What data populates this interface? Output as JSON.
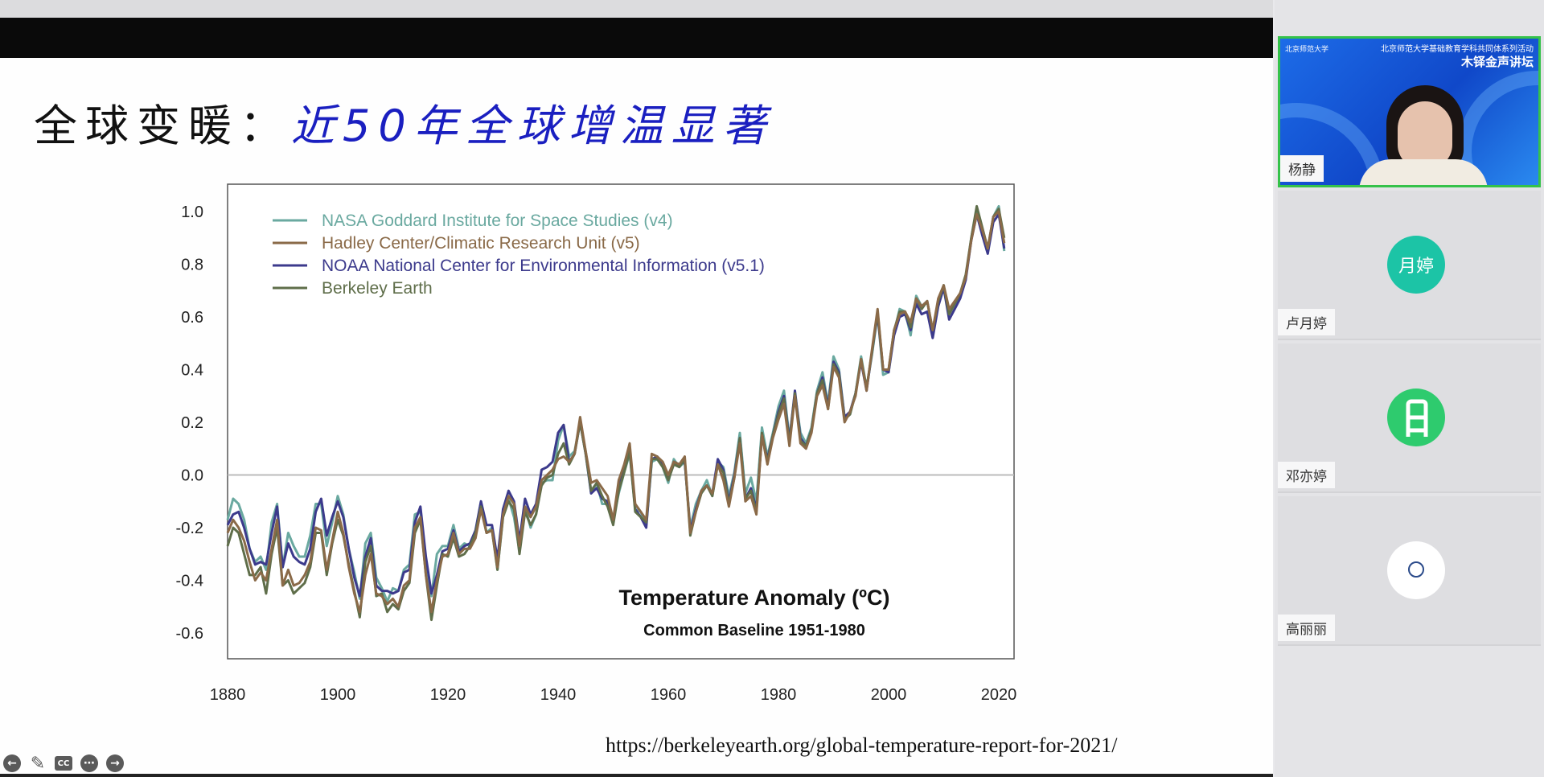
{
  "slide": {
    "title_black": "全球变暖：",
    "title_blue": "近50年全球增温显著",
    "source_url": "https://berkeleyearth.org/global-temperature-report-for-2021/"
  },
  "controls": {
    "prev": "←",
    "pen": "✎",
    "cc": "CC",
    "more": "⋯",
    "next": "→"
  },
  "participants": [
    {
      "name": "杨静",
      "video_header_line1": "北京师范大学基础教育学科共同体系列活动",
      "video_header_line2": "木铎金声讲坛",
      "logo_text": "北京师范大学"
    },
    {
      "name": "卢月婷",
      "avatar_text": "月婷",
      "avatar_color": "#1cc4a6"
    },
    {
      "name": "邓亦婷",
      "avatar_text": "",
      "avatar_color": "#2ecb6e"
    },
    {
      "name": "高丽丽",
      "avatar_text": "北京师范大学",
      "avatar_color": "#ffffff"
    }
  ],
  "chart_data": {
    "type": "line",
    "title": "Temperature Anomaly (ºC)",
    "subtitle": "Common Baseline 1951-1980",
    "xlabel": "",
    "ylabel": "",
    "xlim": [
      1880,
      2022
    ],
    "ylim": [
      -0.7,
      1.1
    ],
    "x_start": 1880,
    "xticks": [
      1880,
      1900,
      1920,
      1940,
      1960,
      1980,
      2000,
      2020
    ],
    "yticks": [
      "1.0",
      "0.8",
      "0.6",
      "0.4",
      "0.2",
      "0.0",
      "-0.2",
      "-0.4",
      "-0.6"
    ],
    "ytick_values": [
      1.0,
      0.8,
      0.6,
      0.4,
      0.2,
      0.0,
      -0.2,
      -0.4,
      -0.6
    ],
    "zero_line": true,
    "legend_position": "top-left",
    "series": [
      {
        "name": "NASA Goddard Institute for Space Studies (v4)",
        "color": "#6aa9a0",
        "values": [
          -0.17,
          -0.09,
          -0.11,
          -0.17,
          -0.28,
          -0.33,
          -0.31,
          -0.36,
          -0.18,
          -0.11,
          -0.35,
          -0.22,
          -0.27,
          -0.31,
          -0.31,
          -0.23,
          -0.11,
          -0.11,
          -0.27,
          -0.18,
          -0.08,
          -0.15,
          -0.28,
          -0.37,
          -0.47,
          -0.26,
          -0.22,
          -0.39,
          -0.43,
          -0.48,
          -0.43,
          -0.44,
          -0.36,
          -0.34,
          -0.15,
          -0.14,
          -0.36,
          -0.46,
          -0.3,
          -0.27,
          -0.27,
          -0.19,
          -0.28,
          -0.26,
          -0.27,
          -0.22,
          -0.1,
          -0.22,
          -0.2,
          -0.36,
          -0.16,
          -0.09,
          -0.16,
          -0.29,
          -0.12,
          -0.2,
          -0.15,
          -0.03,
          -0.02,
          -0.02,
          0.13,
          0.19,
          0.07,
          0.09,
          0.2,
          0.09,
          -0.07,
          -0.03,
          -0.11,
          -0.11,
          -0.17,
          -0.07,
          0.01,
          0.08,
          -0.13,
          -0.14,
          -0.19,
          0.05,
          0.06,
          0.03,
          -0.03,
          0.06,
          0.03,
          0.05,
          -0.2,
          -0.11,
          -0.06,
          -0.02,
          -0.08,
          0.05,
          0.03,
          -0.08,
          0.01,
          0.16,
          -0.07,
          -0.01,
          -0.1,
          0.18,
          0.07,
          0.16,
          0.26,
          0.32,
          0.14,
          0.31,
          0.16,
          0.12,
          0.18,
          0.32,
          0.39,
          0.27,
          0.45,
          0.4,
          0.22,
          0.23,
          0.31,
          0.45,
          0.33,
          0.46,
          0.61,
          0.38,
          0.39,
          0.54,
          0.63,
          0.62,
          0.53,
          0.68,
          0.64,
          0.66,
          0.54,
          0.65,
          0.72,
          0.61,
          0.65,
          0.68,
          0.75,
          0.9,
          1.01,
          0.92,
          0.85,
          0.98,
          1.02,
          0.85
        ]
      },
      {
        "name": "Hadley Center/Climatic Research Unit (v5)",
        "color": "#8a6a48",
        "values": [
          -0.22,
          -0.17,
          -0.2,
          -0.25,
          -0.33,
          -0.4,
          -0.37,
          -0.4,
          -0.28,
          -0.17,
          -0.42,
          -0.36,
          -0.42,
          -0.41,
          -0.38,
          -0.33,
          -0.2,
          -0.21,
          -0.36,
          -0.25,
          -0.14,
          -0.22,
          -0.35,
          -0.45,
          -0.52,
          -0.38,
          -0.3,
          -0.45,
          -0.46,
          -0.49,
          -0.47,
          -0.5,
          -0.42,
          -0.4,
          -0.2,
          -0.16,
          -0.38,
          -0.52,
          -0.4,
          -0.31,
          -0.3,
          -0.22,
          -0.3,
          -0.28,
          -0.28,
          -0.24,
          -0.13,
          -0.22,
          -0.21,
          -0.35,
          -0.15,
          -0.08,
          -0.11,
          -0.27,
          -0.12,
          -0.16,
          -0.12,
          -0.02,
          0.0,
          0.02,
          0.06,
          0.07,
          0.05,
          0.08,
          0.22,
          0.09,
          -0.03,
          -0.02,
          -0.05,
          -0.08,
          -0.17,
          -0.02,
          0.04,
          0.12,
          -0.11,
          -0.14,
          -0.17,
          0.08,
          0.07,
          0.05,
          0.0,
          0.05,
          0.04,
          0.07,
          -0.22,
          -0.14,
          -0.06,
          -0.04,
          -0.07,
          0.04,
          -0.02,
          -0.12,
          -0.01,
          0.12,
          -0.1,
          -0.08,
          -0.15,
          0.15,
          0.04,
          0.14,
          0.21,
          0.27,
          0.11,
          0.3,
          0.12,
          0.1,
          0.16,
          0.3,
          0.34,
          0.25,
          0.41,
          0.37,
          0.2,
          0.24,
          0.3,
          0.44,
          0.32,
          0.48,
          0.63,
          0.4,
          0.4,
          0.55,
          0.61,
          0.62,
          0.58,
          0.67,
          0.64,
          0.66,
          0.55,
          0.67,
          0.72,
          0.63,
          0.66,
          0.69,
          0.75,
          0.89,
          0.99,
          0.93,
          0.86,
          0.98,
          1.0,
          0.88
        ]
      },
      {
        "name": "NOAA National Center for Environmental Information (v5.1)",
        "color": "#3c3a8c",
        "values": [
          -0.19,
          -0.15,
          -0.14,
          -0.2,
          -0.28,
          -0.34,
          -0.33,
          -0.34,
          -0.22,
          -0.12,
          -0.35,
          -0.26,
          -0.31,
          -0.33,
          -0.34,
          -0.28,
          -0.14,
          -0.09,
          -0.23,
          -0.16,
          -0.1,
          -0.16,
          -0.28,
          -0.39,
          -0.46,
          -0.31,
          -0.24,
          -0.42,
          -0.44,
          -0.44,
          -0.45,
          -0.44,
          -0.37,
          -0.36,
          -0.18,
          -0.12,
          -0.31,
          -0.45,
          -0.38,
          -0.29,
          -0.28,
          -0.21,
          -0.29,
          -0.27,
          -0.26,
          -0.21,
          -0.1,
          -0.19,
          -0.19,
          -0.32,
          -0.13,
          -0.06,
          -0.1,
          -0.25,
          -0.09,
          -0.15,
          -0.11,
          0.02,
          0.03,
          0.05,
          0.16,
          0.19,
          0.05,
          0.08,
          0.2,
          0.08,
          -0.07,
          -0.05,
          -0.09,
          -0.1,
          -0.18,
          -0.04,
          0.03,
          0.1,
          -0.13,
          -0.16,
          -0.2,
          0.06,
          0.07,
          0.04,
          -0.01,
          0.05,
          0.04,
          0.05,
          -0.21,
          -0.13,
          -0.06,
          -0.04,
          -0.07,
          0.06,
          0.02,
          -0.1,
          0.0,
          0.14,
          -0.09,
          -0.05,
          -0.13,
          0.15,
          0.06,
          0.15,
          0.24,
          0.3,
          0.13,
          0.32,
          0.14,
          0.11,
          0.17,
          0.31,
          0.37,
          0.26,
          0.43,
          0.39,
          0.22,
          0.24,
          0.31,
          0.43,
          0.32,
          0.47,
          0.61,
          0.4,
          0.39,
          0.53,
          0.6,
          0.61,
          0.55,
          0.65,
          0.61,
          0.62,
          0.52,
          0.64,
          0.71,
          0.59,
          0.63,
          0.67,
          0.74,
          0.89,
          0.99,
          0.91,
          0.84,
          0.96,
          0.99,
          0.86
        ]
      },
      {
        "name": "Berkeley Earth",
        "color": "#5f6e4a",
        "values": [
          -0.27,
          -0.2,
          -0.22,
          -0.3,
          -0.38,
          -0.38,
          -0.35,
          -0.45,
          -0.3,
          -0.2,
          -0.42,
          -0.4,
          -0.45,
          -0.43,
          -0.41,
          -0.35,
          -0.22,
          -0.22,
          -0.38,
          -0.26,
          -0.17,
          -0.23,
          -0.34,
          -0.44,
          -0.54,
          -0.33,
          -0.27,
          -0.46,
          -0.45,
          -0.52,
          -0.49,
          -0.51,
          -0.44,
          -0.41,
          -0.22,
          -0.17,
          -0.38,
          -0.55,
          -0.42,
          -0.3,
          -0.31,
          -0.24,
          -0.31,
          -0.3,
          -0.27,
          -0.22,
          -0.12,
          -0.22,
          -0.21,
          -0.36,
          -0.16,
          -0.1,
          -0.13,
          -0.3,
          -0.14,
          -0.19,
          -0.15,
          -0.04,
          -0.01,
          0.0,
          0.08,
          0.12,
          0.04,
          0.08,
          0.2,
          0.08,
          -0.06,
          -0.03,
          -0.08,
          -0.12,
          -0.19,
          -0.06,
          0.01,
          0.09,
          -0.14,
          -0.16,
          -0.18,
          0.06,
          0.06,
          0.03,
          -0.02,
          0.04,
          0.03,
          0.06,
          -0.23,
          -0.14,
          -0.07,
          -0.04,
          -0.08,
          0.04,
          0.01,
          -0.11,
          -0.01,
          0.14,
          -0.09,
          -0.06,
          -0.14,
          0.16,
          0.05,
          0.15,
          0.23,
          0.29,
          0.12,
          0.31,
          0.13,
          0.11,
          0.17,
          0.31,
          0.36,
          0.25,
          0.42,
          0.38,
          0.21,
          0.23,
          0.31,
          0.44,
          0.33,
          0.47,
          0.62,
          0.4,
          0.4,
          0.55,
          0.62,
          0.62,
          0.56,
          0.67,
          0.63,
          0.66,
          0.55,
          0.66,
          0.72,
          0.61,
          0.65,
          0.69,
          0.76,
          0.9,
          1.02,
          0.94,
          0.86,
          0.98,
          1.01,
          0.9
        ]
      }
    ]
  }
}
